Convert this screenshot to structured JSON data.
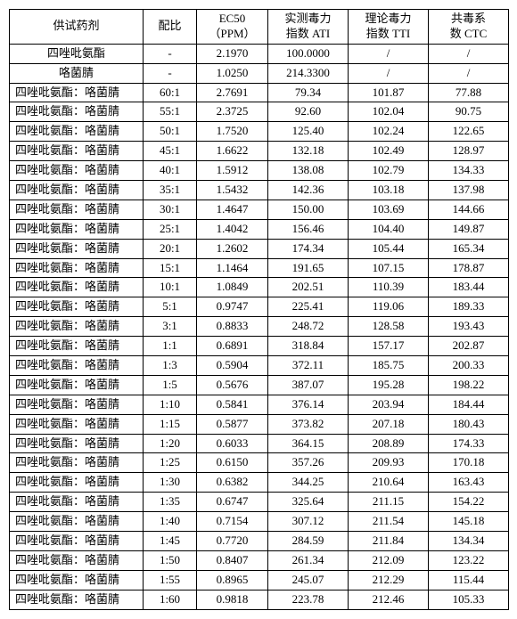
{
  "headers": {
    "agent": "供试药剂",
    "ratio": "配比",
    "ec50_l1": "EC50",
    "ec50_l2": "（PPM）",
    "ati_l1": "实测毒力",
    "ati_l2": "指数 ATI",
    "tti_l1": "理论毒力",
    "tti_l2": "指数 TTI",
    "ctc_l1": "共毒系",
    "ctc_l2": "数 CTC"
  },
  "rows": [
    {
      "agent": "四唑吡氨酯",
      "ratio": "-",
      "ec50": "2.1970",
      "ati": "100.0000",
      "tti": "/",
      "ctc": "/",
      "align": "center"
    },
    {
      "agent": "咯菌腈",
      "ratio": "-",
      "ec50": "1.0250",
      "ati": "214.3300",
      "tti": "/",
      "ctc": "/",
      "align": "center"
    },
    {
      "agent": "四唑吡氨酯：咯菌腈",
      "ratio": "60:1",
      "ec50": "2.7691",
      "ati": "79.34",
      "tti": "101.87",
      "ctc": "77.88",
      "align": "left"
    },
    {
      "agent": "四唑吡氨酯：咯菌腈",
      "ratio": "55:1",
      "ec50": "2.3725",
      "ati": "92.60",
      "tti": "102.04",
      "ctc": "90.75",
      "align": "left"
    },
    {
      "agent": "四唑吡氨酯：咯菌腈",
      "ratio": "50:1",
      "ec50": "1.7520",
      "ati": "125.40",
      "tti": "102.24",
      "ctc": "122.65",
      "align": "left"
    },
    {
      "agent": "四唑吡氨酯：咯菌腈",
      "ratio": "45:1",
      "ec50": "1.6622",
      "ati": "132.18",
      "tti": "102.49",
      "ctc": "128.97",
      "align": "left"
    },
    {
      "agent": "四唑吡氨酯：咯菌腈",
      "ratio": "40:1",
      "ec50": "1.5912",
      "ati": "138.08",
      "tti": "102.79",
      "ctc": "134.33",
      "align": "left"
    },
    {
      "agent": "四唑吡氨酯：咯菌腈",
      "ratio": "35:1",
      "ec50": "1.5432",
      "ati": "142.36",
      "tti": "103.18",
      "ctc": "137.98",
      "align": "left"
    },
    {
      "agent": "四唑吡氨酯：咯菌腈",
      "ratio": "30:1",
      "ec50": "1.4647",
      "ati": "150.00",
      "tti": "103.69",
      "ctc": "144.66",
      "align": "left"
    },
    {
      "agent": "四唑吡氨酯：咯菌腈",
      "ratio": "25:1",
      "ec50": "1.4042",
      "ati": "156.46",
      "tti": "104.40",
      "ctc": "149.87",
      "align": "left"
    },
    {
      "agent": "四唑吡氨酯：咯菌腈",
      "ratio": "20:1",
      "ec50": "1.2602",
      "ati": "174.34",
      "tti": "105.44",
      "ctc": "165.34",
      "align": "left"
    },
    {
      "agent": "四唑吡氨酯：咯菌腈",
      "ratio": "15:1",
      "ec50": "1.1464",
      "ati": "191.65",
      "tti": "107.15",
      "ctc": "178.87",
      "align": "left"
    },
    {
      "agent": "四唑吡氨酯：咯菌腈",
      "ratio": "10:1",
      "ec50": "1.0849",
      "ati": "202.51",
      "tti": "110.39",
      "ctc": "183.44",
      "align": "left"
    },
    {
      "agent": "四唑吡氨酯：咯菌腈",
      "ratio": "5:1",
      "ec50": "0.9747",
      "ati": "225.41",
      "tti": "119.06",
      "ctc": "189.33",
      "align": "left"
    },
    {
      "agent": "四唑吡氨酯：咯菌腈",
      "ratio": "3:1",
      "ec50": "0.8833",
      "ati": "248.72",
      "tti": "128.58",
      "ctc": "193.43",
      "align": "left"
    },
    {
      "agent": "四唑吡氨酯：咯菌腈",
      "ratio": "1:1",
      "ec50": "0.6891",
      "ati": "318.84",
      "tti": "157.17",
      "ctc": "202.87",
      "align": "left"
    },
    {
      "agent": "四唑吡氨酯：咯菌腈",
      "ratio": "1:3",
      "ec50": "0.5904",
      "ati": "372.11",
      "tti": "185.75",
      "ctc": "200.33",
      "align": "left"
    },
    {
      "agent": "四唑吡氨酯：咯菌腈",
      "ratio": "1:5",
      "ec50": "0.5676",
      "ati": "387.07",
      "tti": "195.28",
      "ctc": "198.22",
      "align": "left"
    },
    {
      "agent": "四唑吡氨酯：咯菌腈",
      "ratio": "1:10",
      "ec50": "0.5841",
      "ati": "376.14",
      "tti": "203.94",
      "ctc": "184.44",
      "align": "left"
    },
    {
      "agent": "四唑吡氨酯：咯菌腈",
      "ratio": "1:15",
      "ec50": "0.5877",
      "ati": "373.82",
      "tti": "207.18",
      "ctc": "180.43",
      "align": "left"
    },
    {
      "agent": "四唑吡氨酯：咯菌腈",
      "ratio": "1:20",
      "ec50": "0.6033",
      "ati": "364.15",
      "tti": "208.89",
      "ctc": "174.33",
      "align": "left"
    },
    {
      "agent": "四唑吡氨酯：咯菌腈",
      "ratio": "1:25",
      "ec50": "0.6150",
      "ati": "357.26",
      "tti": "209.93",
      "ctc": "170.18",
      "align": "left"
    },
    {
      "agent": "四唑吡氨酯：咯菌腈",
      "ratio": "1:30",
      "ec50": "0.6382",
      "ati": "344.25",
      "tti": "210.64",
      "ctc": "163.43",
      "align": "left"
    },
    {
      "agent": "四唑吡氨酯：咯菌腈",
      "ratio": "1:35",
      "ec50": "0.6747",
      "ati": "325.64",
      "tti": "211.15",
      "ctc": "154.22",
      "align": "left"
    },
    {
      "agent": "四唑吡氨酯：咯菌腈",
      "ratio": "1:40",
      "ec50": "0.7154",
      "ati": "307.12",
      "tti": "211.54",
      "ctc": "145.18",
      "align": "left"
    },
    {
      "agent": "四唑吡氨酯：咯菌腈",
      "ratio": "1:45",
      "ec50": "0.7720",
      "ati": "284.59",
      "tti": "211.84",
      "ctc": "134.34",
      "align": "left"
    },
    {
      "agent": "四唑吡氨酯：咯菌腈",
      "ratio": "1:50",
      "ec50": "0.8407",
      "ati": "261.34",
      "tti": "212.09",
      "ctc": "123.22",
      "align": "left"
    },
    {
      "agent": "四唑吡氨酯：咯菌腈",
      "ratio": "1:55",
      "ec50": "0.8965",
      "ati": "245.07",
      "tti": "212.29",
      "ctc": "115.44",
      "align": "left"
    },
    {
      "agent": "四唑吡氨酯：咯菌腈",
      "ratio": "1:60",
      "ec50": "0.9818",
      "ati": "223.78",
      "tti": "212.46",
      "ctc": "105.33",
      "align": "left"
    }
  ]
}
